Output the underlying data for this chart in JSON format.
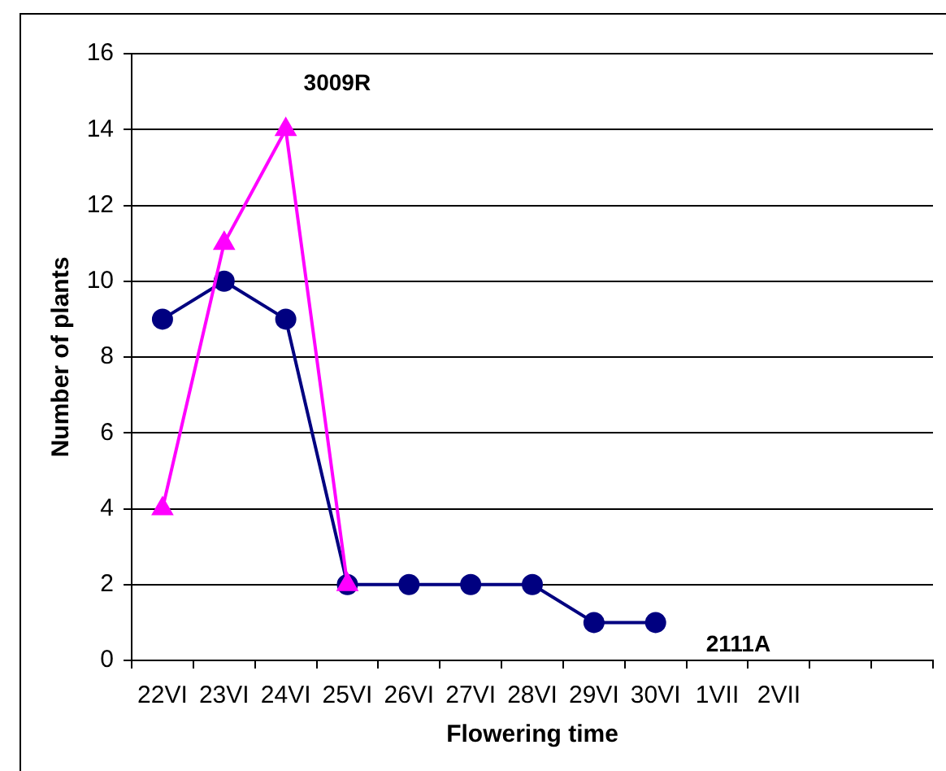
{
  "chart_data": {
    "type": "line",
    "xlabel": "Flowering time",
    "ylabel": "Number of plants",
    "categories": [
      "22VI",
      "23VI",
      "24VI",
      "25VI",
      "26VI",
      "27VI",
      "28VI",
      "29VI",
      "30VI",
      "1VII",
      "2VII",
      null,
      null
    ],
    "series": [
      {
        "name": "2111A",
        "color": "#000080",
        "marker": "circle",
        "values": [
          9,
          10,
          9,
          2,
          2,
          2,
          2,
          1,
          1,
          null,
          null,
          null,
          null
        ]
      },
      {
        "name": "3009R",
        "color": "#ff00ff",
        "marker": "triangle",
        "values": [
          4,
          11,
          14,
          2,
          null,
          null,
          null,
          null,
          null,
          null,
          null,
          null,
          null
        ]
      }
    ],
    "ylim": [
      0,
      16
    ],
    "yticks": [
      0,
      2,
      4,
      6,
      8,
      10,
      12,
      14,
      16
    ],
    "grid": "y"
  }
}
